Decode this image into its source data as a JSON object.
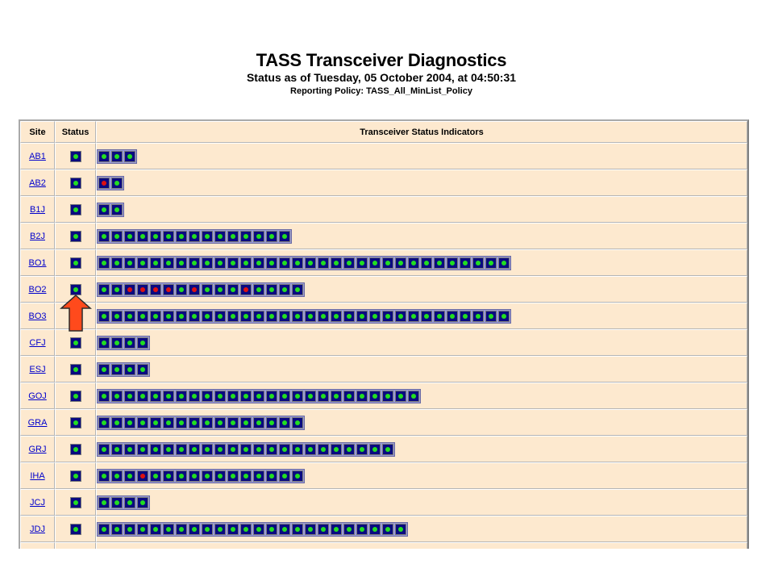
{
  "header": {
    "title": "TASS Transceiver Diagnostics",
    "subtitle": "Status as of Tuesday, 05 October 2004, at 04:50:31",
    "policy": "Reporting Policy: TASS_All_MinList_Policy"
  },
  "columns": {
    "site": "Site",
    "status": "Status",
    "indicators": "Transceiver Status Indicators"
  },
  "colors": {
    "ok": "#22dd22",
    "fault": "#dd1111",
    "led_bg": "#0a0a80",
    "row_bg": "#fde9cf",
    "arrow": "#ff4a1c"
  },
  "arrow_icon": "up-arrow-icon",
  "rows": [
    {
      "site": "AB1",
      "status": "ok",
      "indicators": [
        0,
        0,
        0
      ]
    },
    {
      "site": "AB2",
      "status": "ok",
      "indicators": [
        1,
        0
      ]
    },
    {
      "site": "B1J",
      "status": "ok",
      "indicators": [
        0,
        0
      ]
    },
    {
      "site": "B2J",
      "status": "ok",
      "indicators": [
        0,
        0,
        0,
        0,
        0,
        0,
        0,
        0,
        0,
        0,
        0,
        0,
        0,
        0,
        0
      ]
    },
    {
      "site": "BO1",
      "status": "ok",
      "indicators": [
        0,
        0,
        0,
        0,
        0,
        0,
        0,
        0,
        0,
        0,
        0,
        0,
        0,
        0,
        0,
        0,
        0,
        0,
        0,
        0,
        0,
        0,
        0,
        0,
        0,
        0,
        0,
        0,
        0,
        0,
        0,
        0
      ]
    },
    {
      "site": "BO2",
      "status": "ok",
      "indicators": [
        0,
        0,
        1,
        1,
        1,
        1,
        0,
        1,
        0,
        0,
        0,
        1,
        0,
        0,
        0,
        0
      ]
    },
    {
      "site": "BO3",
      "status": "ok",
      "indicators": [
        0,
        0,
        0,
        0,
        0,
        0,
        0,
        0,
        0,
        0,
        0,
        0,
        0,
        0,
        0,
        0,
        0,
        0,
        0,
        0,
        0,
        0,
        0,
        0,
        0,
        0,
        0,
        0,
        0,
        0,
        0,
        0
      ]
    },
    {
      "site": "CFJ",
      "status": "ok",
      "indicators": [
        0,
        0,
        0,
        0
      ]
    },
    {
      "site": "ESJ",
      "status": "ok",
      "indicators": [
        0,
        0,
        0,
        0
      ]
    },
    {
      "site": "GOJ",
      "status": "ok",
      "indicators": [
        0,
        0,
        0,
        0,
        0,
        0,
        0,
        0,
        0,
        0,
        0,
        0,
        0,
        0,
        0,
        0,
        0,
        0,
        0,
        0,
        0,
        0,
        0,
        0,
        0
      ]
    },
    {
      "site": "GRA",
      "status": "ok",
      "indicators": [
        0,
        0,
        0,
        0,
        0,
        0,
        0,
        0,
        0,
        0,
        0,
        0,
        0,
        0,
        0,
        0
      ]
    },
    {
      "site": "GRJ",
      "status": "ok",
      "indicators": [
        0,
        0,
        0,
        0,
        0,
        0,
        0,
        0,
        0,
        0,
        0,
        0,
        0,
        0,
        0,
        0,
        0,
        0,
        0,
        0,
        0,
        0,
        0
      ]
    },
    {
      "site": "IHA",
      "status": "ok",
      "indicators": [
        0,
        0,
        0,
        1,
        0,
        0,
        0,
        0,
        0,
        0,
        0,
        0,
        0,
        0,
        0,
        0
      ]
    },
    {
      "site": "JCJ",
      "status": "ok",
      "indicators": [
        0,
        0,
        0,
        0
      ]
    },
    {
      "site": "JDJ",
      "status": "ok",
      "indicators": [
        0,
        0,
        0,
        0,
        0,
        0,
        0,
        0,
        0,
        0,
        0,
        0,
        0,
        0,
        0,
        0,
        0,
        0,
        0,
        0,
        0,
        0,
        0,
        0
      ]
    },
    {
      "site": "",
      "status": "",
      "indicators": []
    }
  ]
}
